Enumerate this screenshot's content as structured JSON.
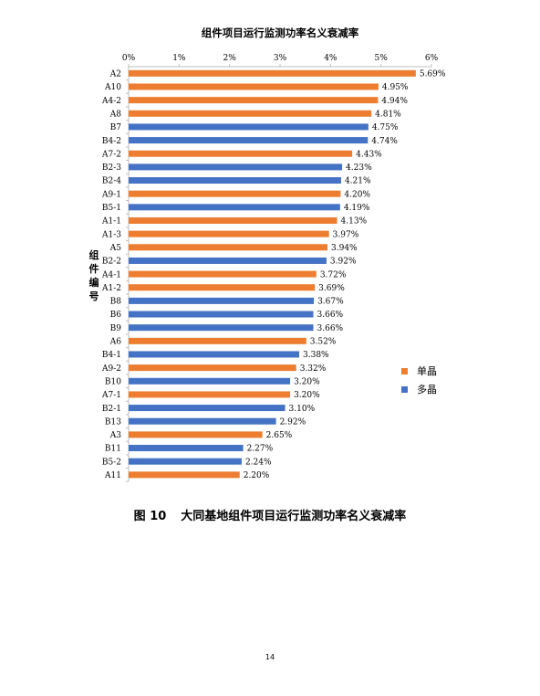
{
  "chart_data": {
    "type": "bar",
    "orientation": "horizontal",
    "title": "组件项目运行监测功率名义衰减率",
    "xlabel": "",
    "ylabel": "组件编号",
    "xlim": [
      0,
      6
    ],
    "x_ticks": [
      "0%",
      "1%",
      "2%",
      "3%",
      "4%",
      "5%",
      "6%"
    ],
    "x_axis_position": "top",
    "grid": false,
    "legend_position": "right",
    "series": [
      {
        "name": "单晶",
        "color": "#ED7D31"
      },
      {
        "name": "多晶",
        "color": "#4472C4"
      }
    ],
    "bars": [
      {
        "category": "A2",
        "value": 5.69,
        "label": "5.69%",
        "series": "单晶"
      },
      {
        "category": "A10",
        "value": 4.95,
        "label": "4.95%",
        "series": "单晶"
      },
      {
        "category": "A4-2",
        "value": 4.94,
        "label": "4.94%",
        "series": "单晶"
      },
      {
        "category": "A8",
        "value": 4.81,
        "label": "4.81%",
        "series": "单晶"
      },
      {
        "category": "B7",
        "value": 4.75,
        "label": "4.75%",
        "series": "多晶"
      },
      {
        "category": "B4-2",
        "value": 4.74,
        "label": "4.74%",
        "series": "多晶"
      },
      {
        "category": "A7-2",
        "value": 4.43,
        "label": "4.43%",
        "series": "单晶"
      },
      {
        "category": "B2-3",
        "value": 4.23,
        "label": "4.23%",
        "series": "多晶"
      },
      {
        "category": "B2-4",
        "value": 4.21,
        "label": "4.21%",
        "series": "多晶"
      },
      {
        "category": "A9-1",
        "value": 4.2,
        "label": "4.20%",
        "series": "单晶"
      },
      {
        "category": "B5-1",
        "value": 4.19,
        "label": "4.19%",
        "series": "多晶"
      },
      {
        "category": "A1-1",
        "value": 4.13,
        "label": "4.13%",
        "series": "单晶"
      },
      {
        "category": "A1-3",
        "value": 3.97,
        "label": "3.97%",
        "series": "单晶"
      },
      {
        "category": "A5",
        "value": 3.94,
        "label": "3.94%",
        "series": "单晶"
      },
      {
        "category": "B2-2",
        "value": 3.92,
        "label": "3.92%",
        "series": "多晶"
      },
      {
        "category": "A4-1",
        "value": 3.72,
        "label": "3.72%",
        "series": "单晶"
      },
      {
        "category": "A1-2",
        "value": 3.69,
        "label": "3.69%",
        "series": "单晶"
      },
      {
        "category": "B8",
        "value": 3.67,
        "label": "3.67%",
        "series": "多晶"
      },
      {
        "category": "B6",
        "value": 3.66,
        "label": "3.66%",
        "series": "多晶"
      },
      {
        "category": "B9",
        "value": 3.66,
        "label": "3.66%",
        "series": "多晶"
      },
      {
        "category": "A6",
        "value": 3.52,
        "label": "3.52%",
        "series": "单晶"
      },
      {
        "category": "B4-1",
        "value": 3.38,
        "label": "3.38%",
        "series": "多晶"
      },
      {
        "category": "A9-2",
        "value": 3.32,
        "label": "3.32%",
        "series": "单晶"
      },
      {
        "category": "B10",
        "value": 3.2,
        "label": "3.20%",
        "series": "多晶"
      },
      {
        "category": "A7-1",
        "value": 3.2,
        "label": "3.20%",
        "series": "单晶"
      },
      {
        "category": "B2-1",
        "value": 3.1,
        "label": "3.10%",
        "series": "多晶"
      },
      {
        "category": "B13",
        "value": 2.92,
        "label": "2.92%",
        "series": "多晶"
      },
      {
        "category": "A3",
        "value": 2.65,
        "label": "2.65%",
        "series": "单晶"
      },
      {
        "category": "B11",
        "value": 2.27,
        "label": "2.27%",
        "series": "多晶"
      },
      {
        "category": "B5-2",
        "value": 2.24,
        "label": "2.24%",
        "series": "多晶"
      },
      {
        "category": "A11",
        "value": 2.2,
        "label": "2.20%",
        "series": "单晶"
      }
    ]
  },
  "caption": {
    "figure_number": "图 10",
    "text": "大同基地组件项目运行监测功率名义衰减率"
  },
  "page_number": "14"
}
